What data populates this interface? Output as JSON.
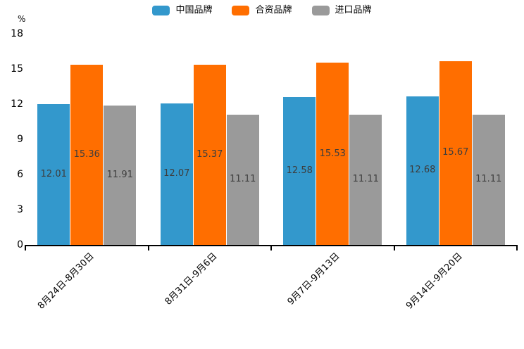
{
  "chart_data": {
    "type": "bar",
    "title": "",
    "categories": [
      "8月24日-8月30日",
      "8月31日-9月6日",
      "9月7日-9月13日",
      "9月14日-9月20日"
    ],
    "series": [
      {
        "name": "中国品牌",
        "color": "#3398cc",
        "values": [
          12.01,
          12.07,
          12.58,
          12.68
        ]
      },
      {
        "name": "合资品牌",
        "color": "#ff6e00",
        "values": [
          15.36,
          15.37,
          15.53,
          15.67
        ]
      },
      {
        "name": "进口品牌",
        "color": "#9a9a9a",
        "values": [
          11.91,
          11.11,
          11.11,
          11.11
        ]
      }
    ],
    "xlabel": "",
    "ylabel": "%",
    "yticks": [
      0,
      3,
      6,
      9,
      12,
      15,
      18
    ],
    "ylim": [
      0,
      18
    ],
    "grid": false,
    "legend_position": "top",
    "value_labels": true,
    "value_label_color": "#3d3d3d",
    "axis_color": "#000000"
  }
}
